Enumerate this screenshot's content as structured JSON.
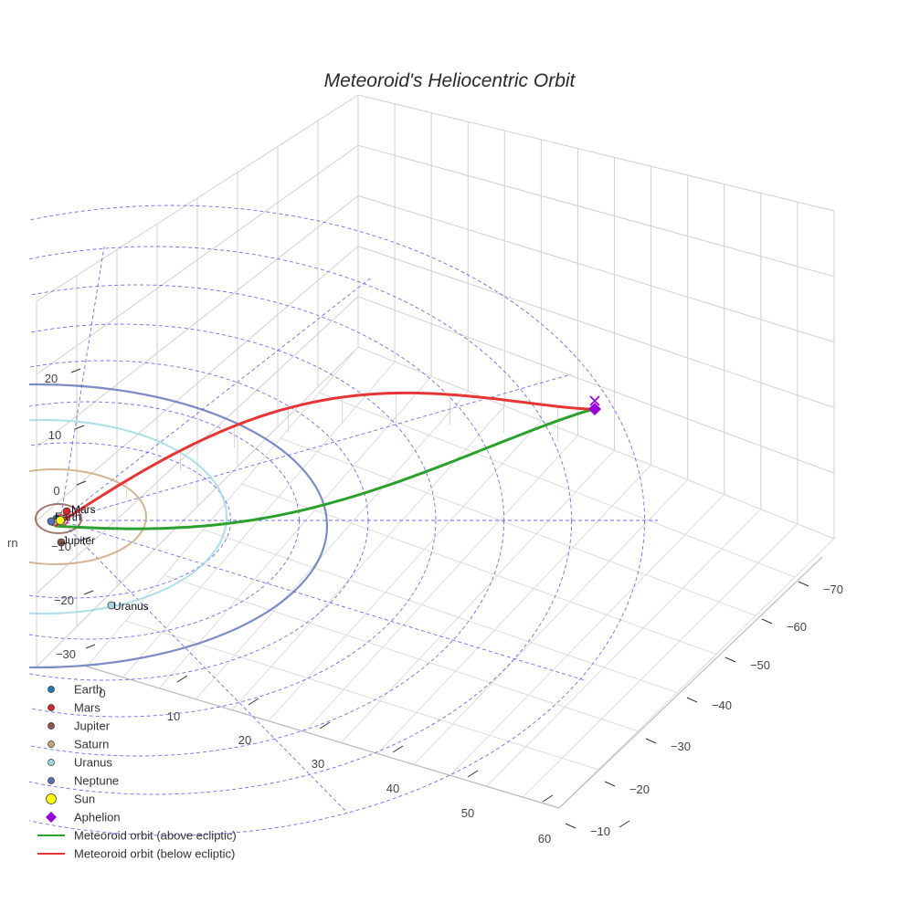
{
  "chart_data": {
    "type": "scatter",
    "subtype": "3d-orbit",
    "title": "Meteoroid's Heliocentric Orbit",
    "grid": true,
    "legend_position": "bottom-left",
    "axes": {
      "x": {
        "ticks": [
          "0",
          "10",
          "20",
          "30",
          "40",
          "50",
          "60"
        ]
      },
      "y": {
        "ticks": [
          "−70",
          "−60",
          "−50",
          "−40",
          "−30",
          "−20",
          "−10"
        ]
      },
      "z": {
        "ticks": [
          "20",
          "10",
          "0",
          "−10",
          "−20",
          "−30"
        ],
        "clipped_label": "rn"
      }
    },
    "planets": [
      {
        "name": "Earth",
        "color": "#1f77b4",
        "orbit_radius_au": 1.0,
        "label": "Earth"
      },
      {
        "name": "Mars",
        "color": "#d62728",
        "orbit_radius_au": 1.52,
        "label": "Mars"
      },
      {
        "name": "Jupiter",
        "color": "#8c564b",
        "orbit_radius_au": 5.2,
        "label": "Jupiter"
      },
      {
        "name": "Saturn",
        "color": "#c8a577",
        "orbit_radius_au": 9.54,
        "label": ""
      },
      {
        "name": "Uranus",
        "color": "#9fd8e2",
        "orbit_radius_au": 19.2,
        "label": "Uranus"
      },
      {
        "name": "Neptune",
        "color": "#5a6fb5",
        "orbit_radius_au": 30.1,
        "label": ""
      }
    ],
    "sun": {
      "name": "Sun",
      "color": "#ffff00"
    },
    "aphelion": {
      "name": "Aphelion",
      "color": "#9400d3",
      "x_au": -66.0,
      "y_au": 0.0,
      "z_au": 3.5
    },
    "meteoroid_orbit": {
      "perihelion_au": 0.9,
      "aphelion_au": 66.0,
      "series": [
        {
          "name": "Meteoroid orbit (above ecliptic)",
          "color": "#2ca02c"
        },
        {
          "name": "Meteoroid orbit (below ecliptic)",
          "color": "#e63535"
        }
      ]
    },
    "reference_grid": {
      "ring_radii_au": [
        10,
        20,
        30,
        40,
        50,
        60,
        70
      ],
      "color": "#5555ee"
    },
    "legend": [
      {
        "label": "Earth",
        "marker": "circle",
        "color": "#1f77b4"
      },
      {
        "label": "Mars",
        "marker": "circle",
        "color": "#d62728"
      },
      {
        "label": "Jupiter",
        "marker": "circle",
        "color": "#8c564b"
      },
      {
        "label": "Saturn",
        "marker": "circle",
        "color": "#c8a577"
      },
      {
        "label": "Uranus",
        "marker": "circle",
        "color": "#9fd8e2"
      },
      {
        "label": "Neptune",
        "marker": "circle",
        "color": "#5a6fb5"
      },
      {
        "label": "Sun",
        "marker": "circle",
        "color": "#ffff00"
      },
      {
        "label": "Aphelion",
        "marker": "diamond",
        "color": "#9400d3"
      },
      {
        "label": "Meteoroid orbit (above ecliptic)",
        "marker": "line",
        "color": "#2ca02c"
      },
      {
        "label": "Meteoroid orbit (below ecliptic)",
        "marker": "line",
        "color": "#e63535"
      }
    ]
  }
}
